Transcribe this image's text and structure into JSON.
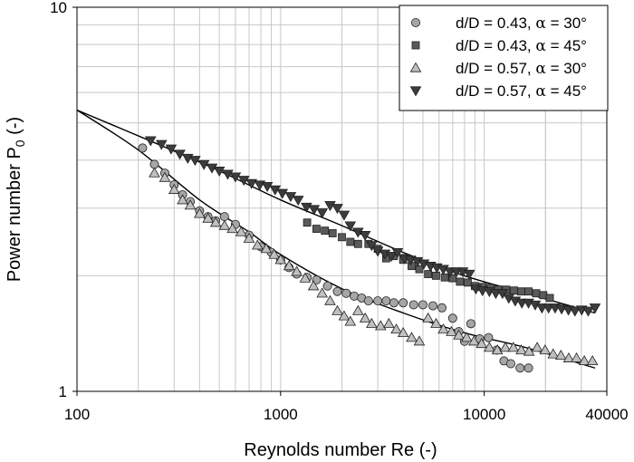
{
  "chart_data": {
    "type": "scatter",
    "title": "",
    "xlabel": "Reynolds number Re (-)",
    "ylabel_main": "Power number P",
    "ylabel_sub": "0",
    "ylabel_unit": " (-)",
    "xscale": "log",
    "yscale": "log",
    "xlim": [
      100,
      40000
    ],
    "ylim": [
      1,
      10
    ],
    "x_ticks": [
      {
        "value": 100,
        "label": "100"
      },
      {
        "value": 1000,
        "label": "1000"
      },
      {
        "value": 10000,
        "label": "10000"
      },
      {
        "value": 40000,
        "label": "40000"
      }
    ],
    "y_ticks": [
      {
        "value": 1,
        "label": "1"
      },
      {
        "value": 10,
        "label": "10"
      }
    ],
    "grid": true,
    "legend_position": "top-right",
    "series": [
      {
        "name": "d/D = 0.43, α = 30°",
        "label_prefix": "d/D = 0.43, ",
        "label_greek": "α",
        "label_suffix": " = 30°",
        "marker": "circle",
        "color": "#a6a6a6",
        "points": [
          [
            210,
            4.3
          ],
          [
            240,
            3.9
          ],
          [
            270,
            3.7
          ],
          [
            300,
            3.45
          ],
          [
            330,
            3.25
          ],
          [
            360,
            3.12
          ],
          [
            400,
            2.95
          ],
          [
            440,
            2.85
          ],
          [
            480,
            2.78
          ],
          [
            530,
            2.85
          ],
          [
            600,
            2.72
          ],
          [
            700,
            2.55
          ],
          [
            800,
            2.38
          ],
          [
            900,
            2.3
          ],
          [
            1000,
            2.2
          ],
          [
            1100,
            2.1
          ],
          [
            1200,
            2.02
          ],
          [
            1350,
            1.98
          ],
          [
            1500,
            1.95
          ],
          [
            1700,
            1.88
          ],
          [
            1900,
            1.82
          ],
          [
            2100,
            1.8
          ],
          [
            2300,
            1.77
          ],
          [
            2500,
            1.75
          ],
          [
            2700,
            1.72
          ],
          [
            3000,
            1.72
          ],
          [
            3300,
            1.72
          ],
          [
            3600,
            1.7
          ],
          [
            4000,
            1.7
          ],
          [
            4500,
            1.68
          ],
          [
            5000,
            1.68
          ],
          [
            5600,
            1.67
          ],
          [
            6200,
            1.65
          ],
          [
            7000,
            1.55
          ],
          [
            7500,
            1.43
          ],
          [
            8000,
            1.35
          ],
          [
            8600,
            1.5
          ],
          [
            9500,
            1.37
          ],
          [
            10500,
            1.38
          ],
          [
            11500,
            1.28
          ],
          [
            12500,
            1.2
          ],
          [
            13500,
            1.18
          ],
          [
            15000,
            1.15
          ],
          [
            16500,
            1.15
          ]
        ]
      },
      {
        "name": "d/D = 0.43, α = 45°",
        "label_prefix": "d/D = 0.43, ",
        "label_greek": "α",
        "label_suffix": " = 45°",
        "marker": "square",
        "color": "#5a5a5a",
        "points": [
          [
            1350,
            2.75
          ],
          [
            1500,
            2.65
          ],
          [
            1650,
            2.62
          ],
          [
            1800,
            2.58
          ],
          [
            2000,
            2.52
          ],
          [
            2200,
            2.45
          ],
          [
            2400,
            2.42
          ],
          [
            2700,
            2.42
          ],
          [
            3000,
            2.35
          ],
          [
            3300,
            2.22
          ],
          [
            3600,
            2.25
          ],
          [
            4000,
            2.2
          ],
          [
            4400,
            2.12
          ],
          [
            4800,
            2.08
          ],
          [
            5300,
            2.02
          ],
          [
            5800,
            2.0
          ],
          [
            6400,
            1.98
          ],
          [
            7000,
            1.97
          ],
          [
            7600,
            1.93
          ],
          [
            8300,
            1.92
          ],
          [
            9000,
            1.88
          ],
          [
            9800,
            1.87
          ],
          [
            10700,
            1.86
          ],
          [
            11700,
            1.84
          ],
          [
            12800,
            1.84
          ],
          [
            14000,
            1.83
          ],
          [
            15200,
            1.82
          ],
          [
            16500,
            1.82
          ],
          [
            18000,
            1.8
          ],
          [
            19500,
            1.78
          ],
          [
            21000,
            1.75
          ]
        ]
      },
      {
        "name": "d/D = 0.57, α = 30°",
        "label_prefix": "d/D = 0.57, ",
        "label_greek": "α",
        "label_suffix": " = 30°",
        "marker": "triangle-up",
        "color": "#c0c0c0",
        "points": [
          [
            240,
            3.7
          ],
          [
            270,
            3.6
          ],
          [
            300,
            3.35
          ],
          [
            330,
            3.15
          ],
          [
            360,
            3.05
          ],
          [
            400,
            2.9
          ],
          [
            440,
            2.82
          ],
          [
            480,
            2.75
          ],
          [
            530,
            2.7
          ],
          [
            580,
            2.65
          ],
          [
            640,
            2.6
          ],
          [
            700,
            2.5
          ],
          [
            770,
            2.4
          ],
          [
            850,
            2.35
          ],
          [
            930,
            2.27
          ],
          [
            1000,
            2.2
          ],
          [
            1100,
            2.12
          ],
          [
            1200,
            2.05
          ],
          [
            1320,
            1.97
          ],
          [
            1450,
            1.88
          ],
          [
            1600,
            1.8
          ],
          [
            1750,
            1.72
          ],
          [
            1900,
            1.62
          ],
          [
            2050,
            1.57
          ],
          [
            2200,
            1.52
          ],
          [
            2400,
            1.62
          ],
          [
            2600,
            1.55
          ],
          [
            2800,
            1.5
          ],
          [
            3100,
            1.48
          ],
          [
            3400,
            1.5
          ],
          [
            3700,
            1.45
          ],
          [
            4000,
            1.42
          ],
          [
            4400,
            1.38
          ],
          [
            4800,
            1.35
          ],
          [
            5300,
            1.55
          ],
          [
            5800,
            1.5
          ],
          [
            6300,
            1.45
          ],
          [
            6900,
            1.43
          ],
          [
            7500,
            1.4
          ],
          [
            8200,
            1.38
          ],
          [
            8900,
            1.35
          ],
          [
            9700,
            1.33
          ],
          [
            10600,
            1.3
          ],
          [
            11600,
            1.28
          ],
          [
            12700,
            1.3
          ],
          [
            13900,
            1.3
          ],
          [
            15200,
            1.28
          ],
          [
            16600,
            1.27
          ],
          [
            18200,
            1.3
          ],
          [
            19900,
            1.28
          ],
          [
            21800,
            1.25
          ],
          [
            23800,
            1.24
          ],
          [
            26000,
            1.22
          ],
          [
            28400,
            1.22
          ],
          [
            31000,
            1.2
          ],
          [
            34000,
            1.2
          ]
        ]
      },
      {
        "name": "d/D = 0.57, α = 45°",
        "label_prefix": "d/D = 0.57, ",
        "label_greek": "α",
        "label_suffix": " = 45°",
        "marker": "triangle-down",
        "color": "#3c3c3c",
        "points": [
          [
            230,
            4.5
          ],
          [
            260,
            4.4
          ],
          [
            290,
            4.28
          ],
          [
            320,
            4.15
          ],
          [
            350,
            4.05
          ],
          [
            380,
            4.0
          ],
          [
            420,
            3.9
          ],
          [
            460,
            3.82
          ],
          [
            500,
            3.75
          ],
          [
            550,
            3.68
          ],
          [
            600,
            3.62
          ],
          [
            660,
            3.55
          ],
          [
            720,
            3.48
          ],
          [
            790,
            3.45
          ],
          [
            860,
            3.42
          ],
          [
            940,
            3.35
          ],
          [
            1020,
            3.28
          ],
          [
            1120,
            3.22
          ],
          [
            1220,
            3.15
          ],
          [
            1340,
            3.02
          ],
          [
            1460,
            2.98
          ],
          [
            1600,
            2.92
          ],
          [
            1750,
            3.05
          ],
          [
            1900,
            3.0
          ],
          [
            2050,
            2.88
          ],
          [
            2200,
            2.7
          ],
          [
            2400,
            2.6
          ],
          [
            2600,
            2.55
          ],
          [
            2800,
            2.4
          ],
          [
            3000,
            2.32
          ],
          [
            3250,
            2.28
          ],
          [
            3500,
            2.25
          ],
          [
            3750,
            2.3
          ],
          [
            4050,
            2.22
          ],
          [
            4350,
            2.2
          ],
          [
            4700,
            2.18
          ],
          [
            5050,
            2.15
          ],
          [
            5450,
            2.12
          ],
          [
            5850,
            2.1
          ],
          [
            6300,
            2.08
          ],
          [
            6800,
            2.05
          ],
          [
            7300,
            2.05
          ],
          [
            7850,
            2.05
          ],
          [
            8450,
            2.02
          ],
          [
            9100,
            1.85
          ],
          [
            9800,
            1.83
          ],
          [
            10600,
            1.82
          ],
          [
            11400,
            1.8
          ],
          [
            12300,
            1.8
          ],
          [
            13200,
            1.75
          ],
          [
            14200,
            1.72
          ],
          [
            15300,
            1.7
          ],
          [
            16500,
            1.7
          ],
          [
            17800,
            1.68
          ],
          [
            19200,
            1.65
          ],
          [
            20700,
            1.65
          ],
          [
            22300,
            1.65
          ],
          [
            24000,
            1.64
          ],
          [
            25900,
            1.63
          ],
          [
            27900,
            1.62
          ],
          [
            30100,
            1.63
          ],
          [
            32400,
            1.62
          ],
          [
            35000,
            1.65
          ]
        ]
      }
    ],
    "fit_lines": [
      {
        "name": "fit-alpha-45",
        "points": [
          [
            100,
            5.4
          ],
          [
            250,
            4.4
          ],
          [
            500,
            3.75
          ],
          [
            1000,
            3.15
          ],
          [
            2000,
            2.7
          ],
          [
            4000,
            2.3
          ],
          [
            8000,
            2.0
          ],
          [
            16000,
            1.8
          ],
          [
            35000,
            1.6
          ]
        ]
      },
      {
        "name": "fit-alpha-30",
        "points": [
          [
            100,
            5.4
          ],
          [
            200,
            4.25
          ],
          [
            400,
            3.15
          ],
          [
            700,
            2.6
          ],
          [
            1000,
            2.27
          ],
          [
            2000,
            1.85
          ],
          [
            4000,
            1.6
          ],
          [
            8000,
            1.42
          ],
          [
            16000,
            1.3
          ],
          [
            35000,
            1.15
          ]
        ]
      }
    ]
  }
}
